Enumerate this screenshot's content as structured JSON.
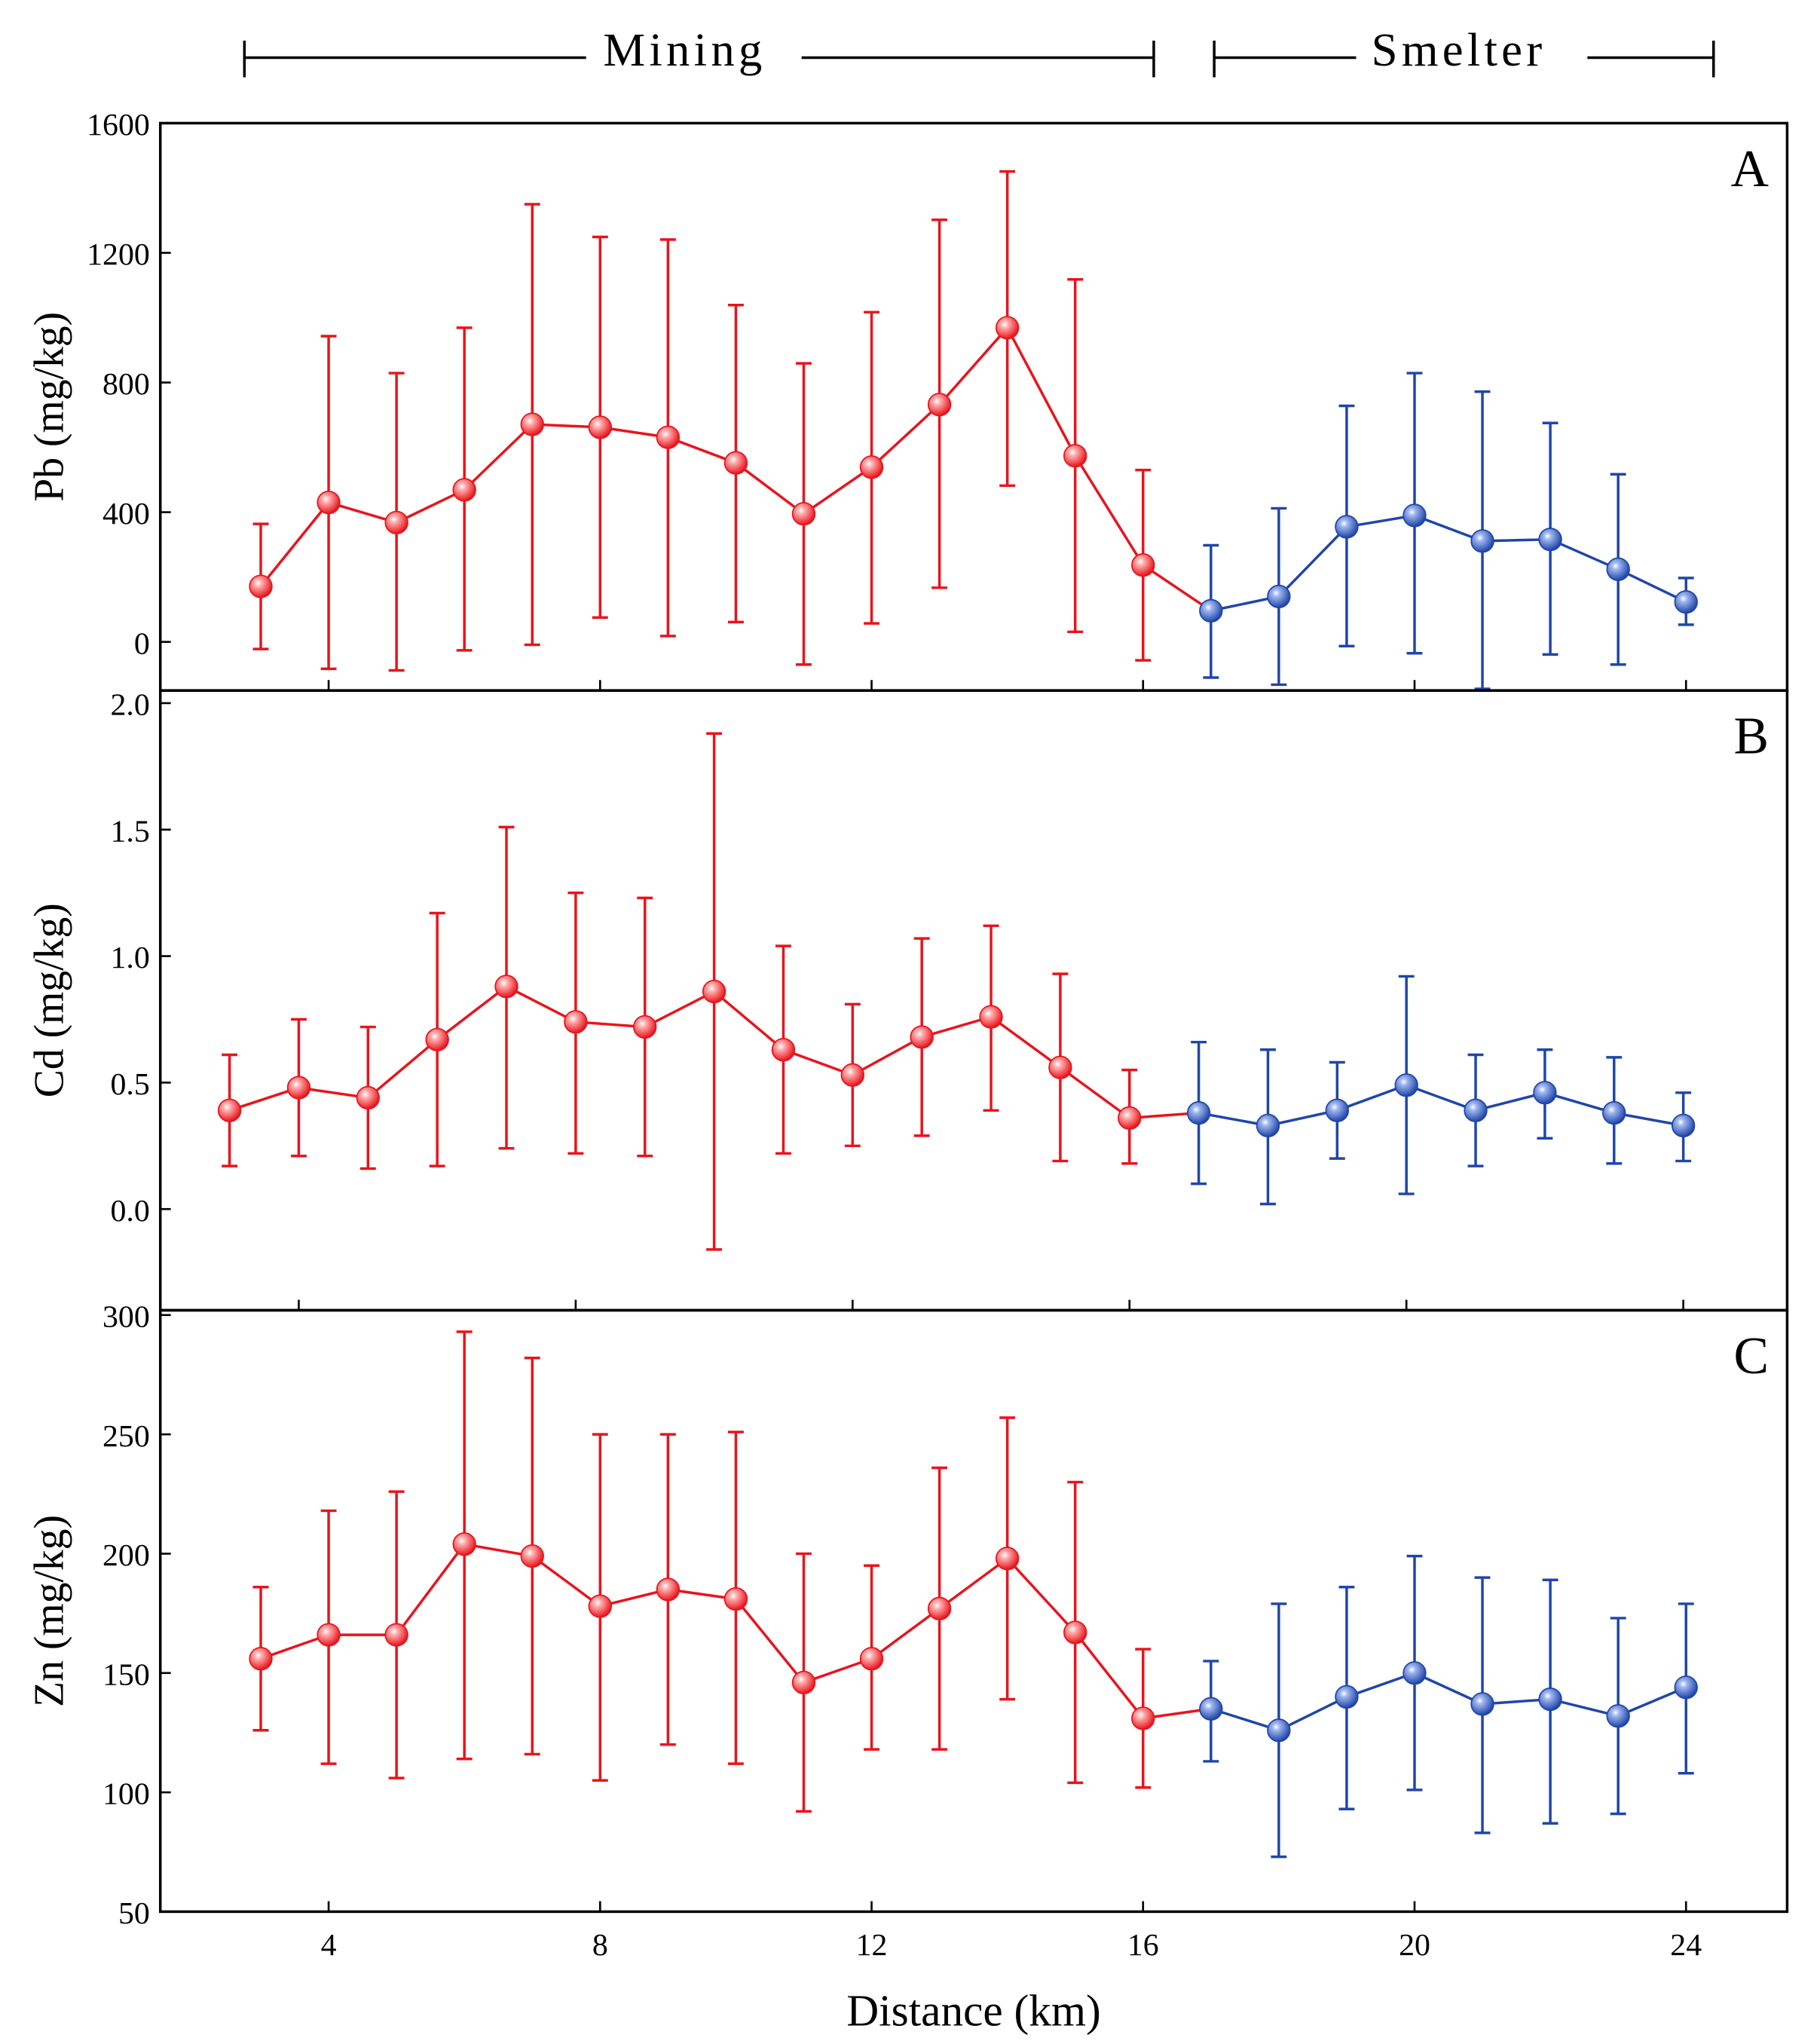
{
  "header": {
    "mining_label": "Mining",
    "smelter_label": "Smelter"
  },
  "xlabel": "Distance (km)",
  "x_tick_labels": [
    "4",
    "8",
    "12",
    "16",
    "20",
    "24"
  ],
  "colors": {
    "mining": "#e8141c",
    "smelter": "#1f46a8"
  },
  "chart_data": [
    {
      "type": "line",
      "panel": "A",
      "ylabel": "Pb (mg/kg)",
      "ylim": [
        -150,
        1600
      ],
      "xlim": [
        1.52,
        25.49
      ],
      "yticks": [
        0,
        400,
        800,
        1200,
        1600
      ],
      "ytick_labels": [
        "0",
        "400",
        "800",
        "1200",
        "1600"
      ],
      "series": [
        {
          "name": "Mining",
          "x": [
            3,
            4,
            5,
            6,
            7,
            8,
            9,
            10,
            11,
            12,
            13,
            14,
            15,
            16
          ],
          "mean": [
            171,
            430,
            368,
            469,
            671,
            662,
            631,
            552,
            395,
            539,
            732,
            969,
            574,
            237
          ],
          "upper": [
            364,
            943,
            829,
            969,
            1350,
            1249,
            1241,
            1039,
            859,
            1017,
            1302,
            1451,
            1118,
            530
          ],
          "lower": [
            -22,
            -83,
            -88,
            -26,
            -9,
            75,
            18,
            61,
            -70,
            57,
            167,
            482,
            31,
            -57
          ]
        },
        {
          "name": "Smelter",
          "x": [
            17,
            18,
            19,
            20,
            21,
            22,
            23,
            24
          ],
          "mean": [
            96,
            140,
            355,
            390,
            311,
            316,
            224,
            123
          ],
          "upper": [
            298,
            412,
            728,
            829,
            772,
            675,
            517,
            197
          ],
          "lower": [
            -110,
            -132,
            -13,
            -35,
            -145,
            -39,
            -70,
            53
          ]
        }
      ]
    },
    {
      "type": "line",
      "panel": "B",
      "ylabel": "Cd (mg/kg)",
      "ylim": [
        -0.4,
        2.05
      ],
      "xlim": [
        2.0,
        25.5
      ],
      "yticks": [
        0,
        0.5,
        1.0,
        1.5,
        2.0
      ],
      "ytick_labels": [
        "0.0",
        "0.5",
        "1.0",
        "1.5",
        "2.0"
      ],
      "series": [
        {
          "name": "Mining",
          "x": [
            3,
            4,
            5,
            6,
            7,
            8,
            9,
            10,
            11,
            12,
            13,
            14,
            15,
            16
          ],
          "mean": [
            0.39,
            0.48,
            0.44,
            0.67,
            0.88,
            0.74,
            0.72,
            0.86,
            0.63,
            0.53,
            0.68,
            0.76,
            0.56,
            0.36
          ],
          "upper": [
            0.61,
            0.75,
            0.72,
            1.17,
            1.51,
            1.25,
            1.23,
            1.88,
            1.04,
            0.81,
            1.07,
            1.12,
            0.93,
            0.55
          ],
          "lower": [
            0.17,
            0.21,
            0.16,
            0.17,
            0.24,
            0.22,
            0.21,
            -0.16,
            0.22,
            0.25,
            0.29,
            0.39,
            0.19,
            0.18
          ]
        },
        {
          "name": "Smelter",
          "x": [
            17,
            18,
            19,
            20,
            21,
            22,
            23,
            24
          ],
          "mean": [
            0.38,
            0.33,
            0.39,
            0.49,
            0.39,
            0.46,
            0.38,
            0.33
          ],
          "upper": [
            0.66,
            0.63,
            0.58,
            0.92,
            0.61,
            0.63,
            0.6,
            0.46
          ],
          "lower": [
            0.1,
            0.02,
            0.2,
            0.06,
            0.17,
            0.28,
            0.18,
            0.19
          ]
        }
      ]
    },
    {
      "type": "line",
      "panel": "C",
      "ylabel": "Zn (mg/kg)",
      "ylim": [
        50,
        302
      ],
      "xlim": [
        1.52,
        25.49
      ],
      "yticks": [
        50,
        100,
        150,
        200,
        250,
        300
      ],
      "ytick_labels": [
        "50",
        "100",
        "150",
        "200",
        "250",
        "300"
      ],
      "series": [
        {
          "name": "Mining",
          "x": [
            3,
            4,
            5,
            6,
            7,
            8,
            9,
            10,
            11,
            12,
            13,
            14,
            15,
            16
          ],
          "mean": [
            156,
            166,
            166,
            204,
            199,
            178,
            185,
            181,
            146,
            156,
            177,
            198,
            167,
            131
          ],
          "upper": [
            186,
            218,
            226,
            293,
            282,
            250,
            250,
            251,
            200,
            195,
            236,
            257,
            230,
            160
          ],
          "lower": [
            126,
            112,
            106,
            114,
            116,
            105,
            120,
            112,
            92,
            118,
            118,
            139,
            104,
            102
          ]
        },
        {
          "name": "Smelter",
          "x": [
            17,
            18,
            19,
            20,
            21,
            22,
            23,
            24
          ],
          "mean": [
            135,
            126,
            140,
            150,
            137,
            139,
            132,
            144
          ],
          "upper": [
            155,
            179,
            186,
            199,
            190,
            189,
            173,
            179
          ],
          "lower": [
            113,
            73,
            93,
            101,
            83,
            87,
            91,
            108
          ]
        }
      ]
    }
  ]
}
